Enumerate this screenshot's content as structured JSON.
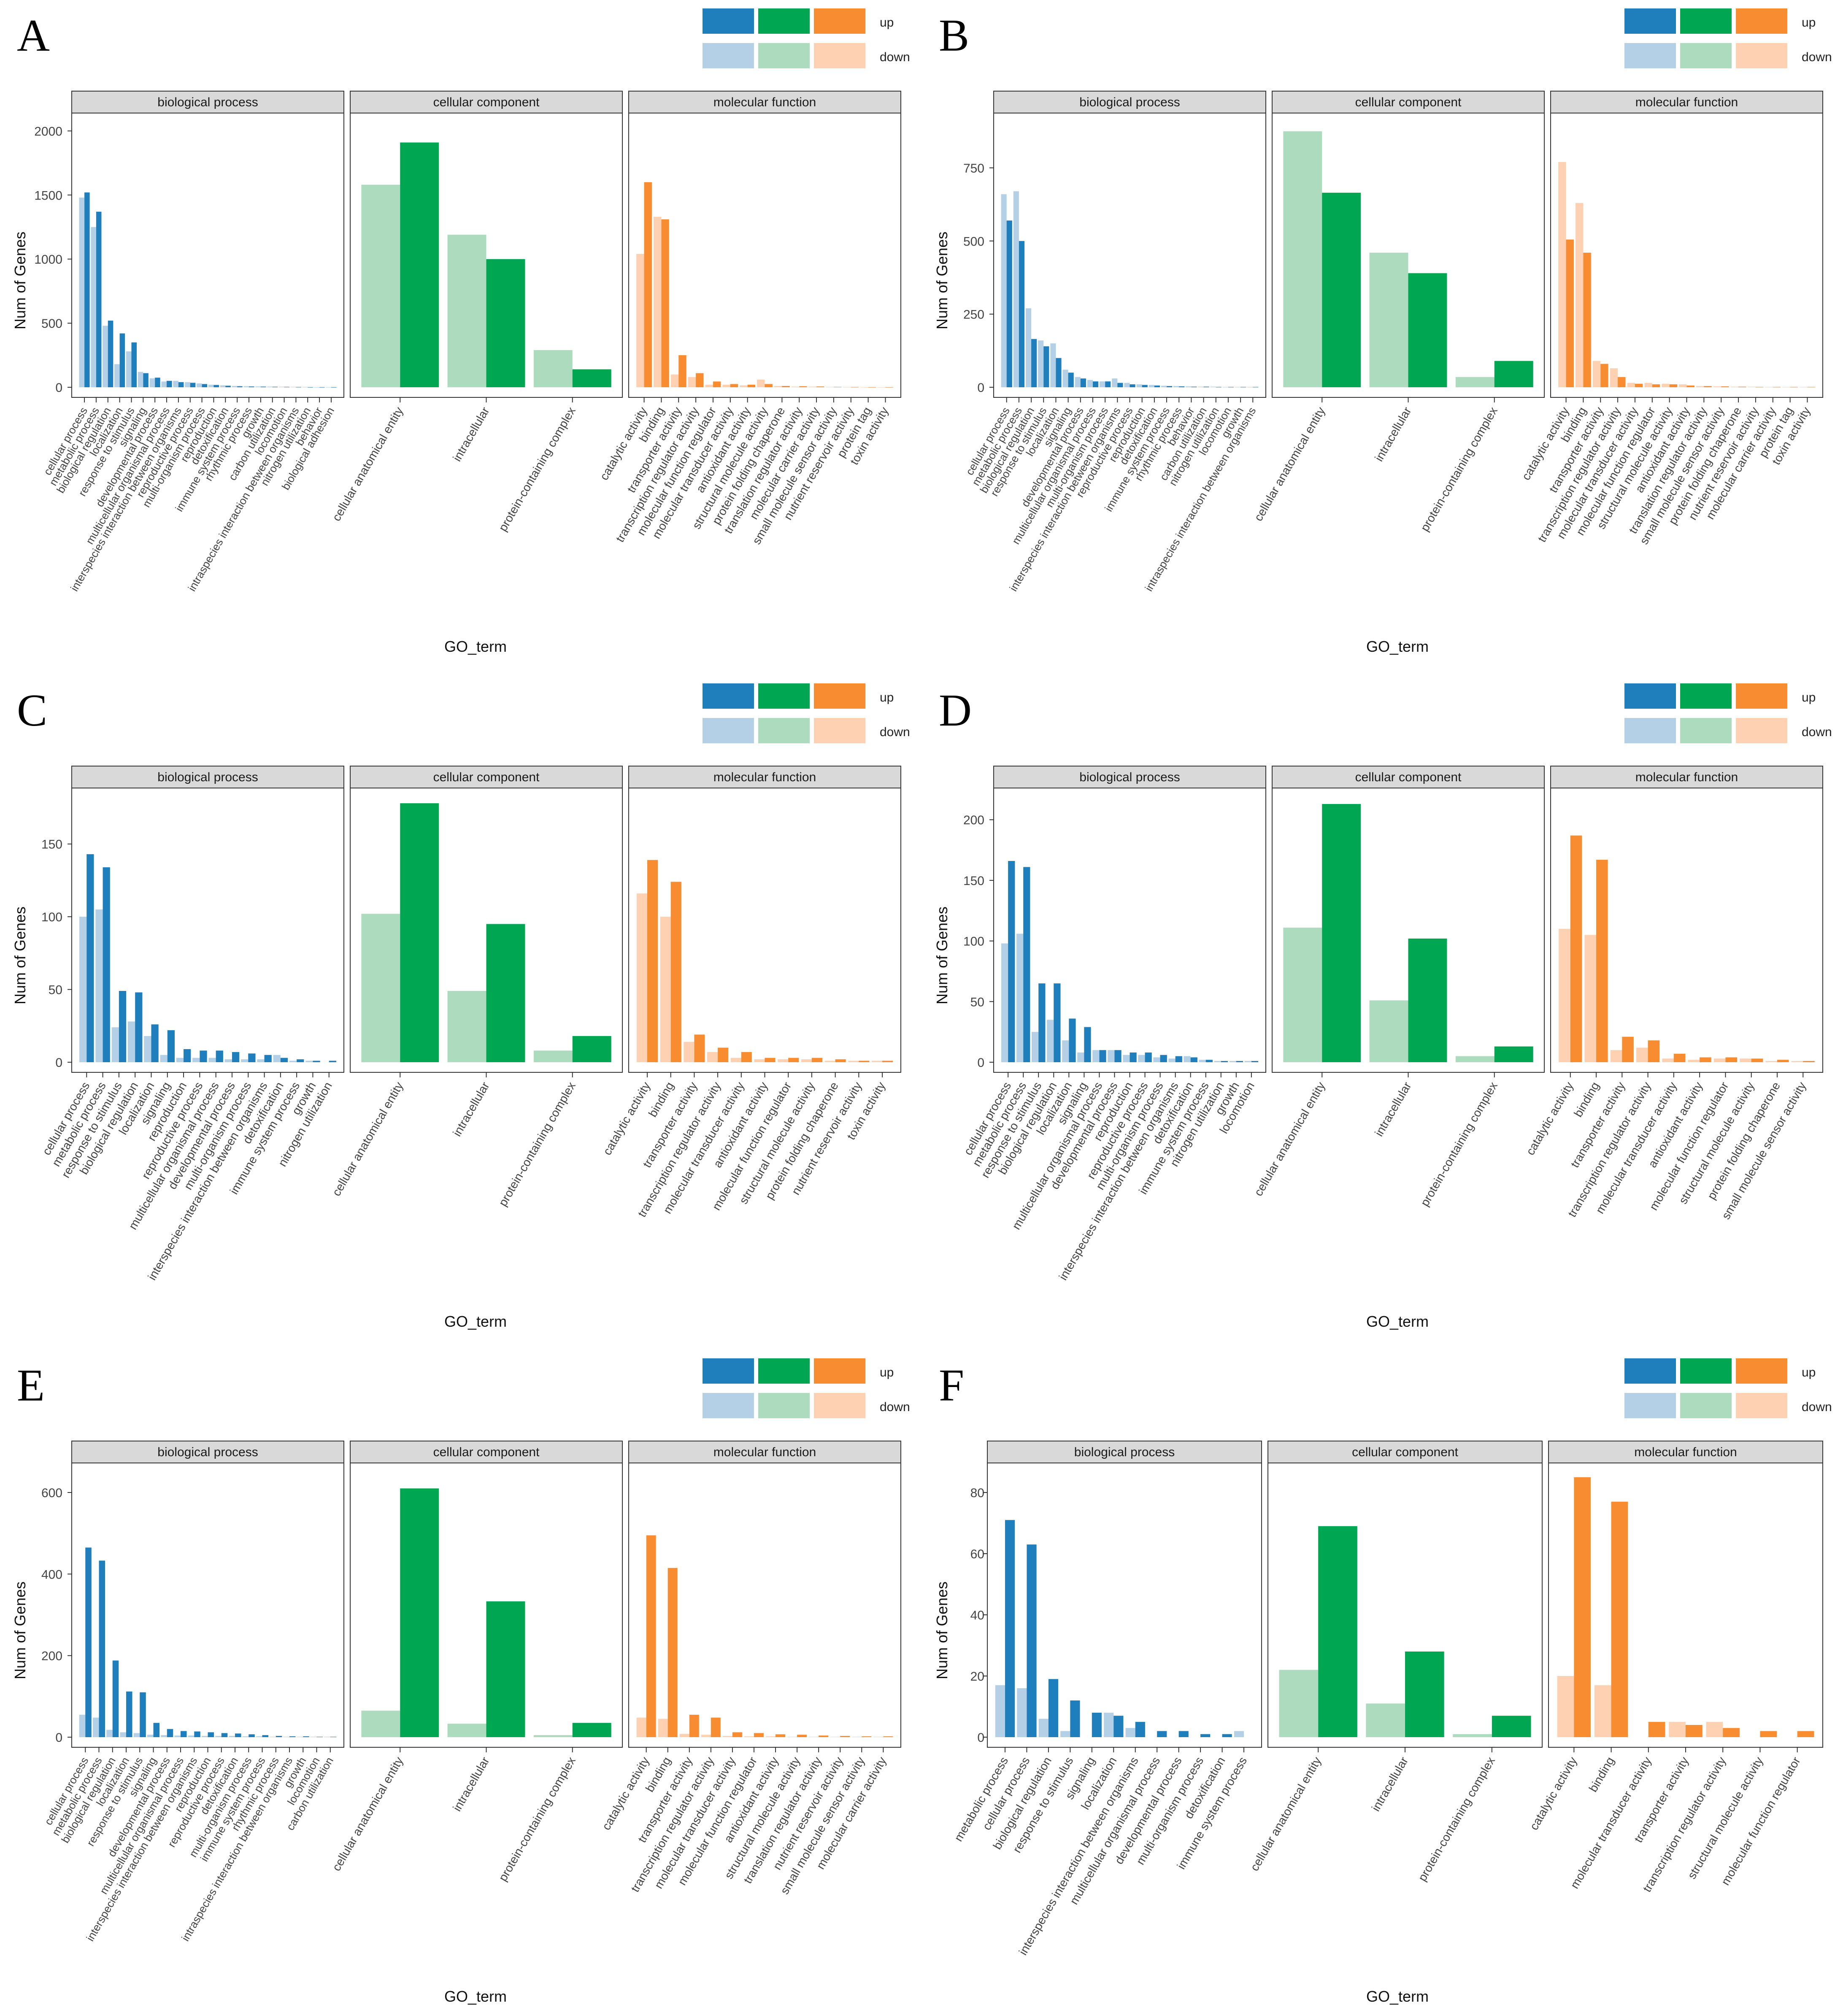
{
  "figure": {
    "x_axis_title": "GO_term",
    "y_axis_title": "Num of Genes",
    "facets": [
      "biological process",
      "cellular component",
      "molecular function"
    ],
    "legend": {
      "up_label": "up",
      "down_label": "down"
    },
    "colors": {
      "bp_up": "#1f7fbd",
      "bp_down": "#b3d0e6",
      "cc_up": "#00a652",
      "cc_down": "#acdcbd",
      "mf_up": "#f88c31",
      "mf_down": "#fdd1b1"
    }
  },
  "chart_data": [
    {
      "type": "bar",
      "panel": "A",
      "ylim": [
        0,
        2100
      ],
      "yticks": [
        0,
        500,
        1000,
        1500,
        2000
      ],
      "facets": [
        {
          "name": "biological process",
          "categories": [
            "cellular process",
            "metabolic process",
            "biological regulation",
            "localization",
            "response to stimulus",
            "signaling",
            "developmental process",
            "multicellular organismal process",
            "interspecies interaction between organisms",
            "reproductive process",
            "multi-organism process",
            "reproduction",
            "detoxification",
            "immune system process",
            "rhythmic process",
            "growth",
            "carbon utilization",
            "locomotion",
            "intraspecies interaction between organisms",
            "nitrogen utilization",
            "behavior",
            "biological adhesion"
          ],
          "down": [
            1480,
            1250,
            480,
            180,
            280,
            120,
            70,
            45,
            50,
            40,
            30,
            20,
            15,
            10,
            8,
            6,
            5,
            4,
            3,
            2,
            1,
            1
          ],
          "up": [
            1520,
            1370,
            520,
            420,
            350,
            110,
            75,
            50,
            40,
            35,
            25,
            18,
            12,
            8,
            6,
            5,
            4,
            3,
            2,
            1,
            1,
            1
          ]
        },
        {
          "name": "cellular component",
          "categories": [
            "cellular anatomical entity",
            "intracellular",
            "protein-containing complex"
          ],
          "down": [
            1580,
            1190,
            290
          ],
          "up": [
            1910,
            1000,
            140
          ]
        },
        {
          "name": "molecular function",
          "categories": [
            "catalytic activity",
            "binding",
            "transporter activity",
            "transcription regulator activity",
            "molecular function regulator",
            "molecular transducer activity",
            "antioxidant activity",
            "structural molecule activity",
            "protein folding chaperone",
            "translation regulator activity",
            "molecular carrier activity",
            "small molecule sensor activity",
            "nutrient reservoir activity",
            "protein tag",
            "toxin activity"
          ],
          "down": [
            1040,
            1330,
            100,
            80,
            20,
            20,
            15,
            60,
            10,
            5,
            5,
            3,
            2,
            1,
            1
          ],
          "up": [
            1600,
            1310,
            250,
            110,
            45,
            25,
            20,
            25,
            10,
            8,
            6,
            3,
            2,
            1,
            1
          ]
        }
      ]
    },
    {
      "type": "bar",
      "panel": "B",
      "ylim": [
        0,
        920
      ],
      "yticks": [
        0,
        250,
        500,
        750
      ],
      "facets": [
        {
          "name": "biological process",
          "categories": [
            "cellular process",
            "metabolic process",
            "biological regulation",
            "response to stimulus",
            "localization",
            "signaling",
            "developmental process",
            "multicellular organismal process",
            "multi-organism process",
            "interspecies interaction between organisms",
            "reproductive process",
            "reproduction",
            "detoxification",
            "immune system process",
            "rhythmic process",
            "behavior",
            "carbon utilization",
            "nitrogen utilization",
            "locomotion",
            "growth",
            "intraspecies interaction between organisms"
          ],
          "down": [
            660,
            670,
            270,
            160,
            150,
            60,
            35,
            25,
            20,
            30,
            15,
            10,
            8,
            5,
            4,
            3,
            2,
            2,
            1,
            1,
            1
          ],
          "up": [
            570,
            500,
            165,
            140,
            100,
            50,
            30,
            20,
            20,
            15,
            10,
            8,
            6,
            4,
            3,
            2,
            2,
            1,
            1,
            1,
            1
          ]
        },
        {
          "name": "cellular component",
          "categories": [
            "cellular anatomical entity",
            "intracellular",
            "protein-containing complex"
          ],
          "down": [
            875,
            460,
            35
          ],
          "up": [
            665,
            390,
            90
          ]
        },
        {
          "name": "molecular function",
          "categories": [
            "catalytic activity",
            "binding",
            "transporter activity",
            "transcription regulator activity",
            "molecular transducer activity",
            "molecular function regulator",
            "structural molecule activity",
            "antioxidant activity",
            "translation regulator activity",
            "small molecule sensor activity",
            "protein folding chaperone",
            "nutrient reservoir activity",
            "molecular carrier activity",
            "protein tag",
            "toxin activity"
          ],
          "down": [
            770,
            630,
            90,
            65,
            15,
            15,
            12,
            10,
            4,
            3,
            2,
            2,
            1,
            1,
            1
          ],
          "up": [
            505,
            460,
            80,
            35,
            12,
            10,
            10,
            6,
            4,
            3,
            2,
            1,
            1,
            1,
            1
          ]
        }
      ]
    },
    {
      "type": "bar",
      "panel": "C",
      "ylim": [
        0,
        185
      ],
      "yticks": [
        0,
        50,
        100,
        150
      ],
      "facets": [
        {
          "name": "biological process",
          "categories": [
            "cellular process",
            "metabolic process",
            "response to stimulus",
            "biological regulation",
            "localization",
            "signaling",
            "reproduction",
            "reproductive process",
            "multicellular organismal process",
            "developmental process",
            "multi-organism process",
            "interspecies interaction between organisms",
            "detoxification",
            "immune system process",
            "growth",
            "nitrogen utilization"
          ],
          "down": [
            100,
            105,
            24,
            28,
            18,
            5,
            3,
            3,
            3,
            2,
            2,
            2,
            5,
            1,
            1,
            0
          ],
          "up": [
            143,
            134,
            49,
            48,
            26,
            22,
            9,
            8,
            8,
            7,
            6,
            5,
            3,
            2,
            1,
            1
          ]
        },
        {
          "name": "cellular component",
          "categories": [
            "cellular anatomical entity",
            "intracellular",
            "protein-containing complex"
          ],
          "down": [
            102,
            49,
            8
          ],
          "up": [
            178,
            95,
            18
          ]
        },
        {
          "name": "molecular function",
          "categories": [
            "catalytic activity",
            "binding",
            "transporter activity",
            "transcription regulator activity",
            "molecular transducer activity",
            "antioxidant activity",
            "molecular function regulator",
            "structural molecule activity",
            "protein folding chaperone",
            "nutrient reservoir activity",
            "toxin activity"
          ],
          "down": [
            116,
            100,
            14,
            7,
            3,
            2,
            2,
            2,
            1,
            1,
            1
          ],
          "up": [
            139,
            124,
            19,
            10,
            7,
            3,
            3,
            3,
            2,
            1,
            1
          ]
        }
      ]
    },
    {
      "type": "bar",
      "panel": "D",
      "ylim": [
        0,
        222
      ],
      "yticks": [
        0,
        50,
        100,
        150,
        200
      ],
      "facets": [
        {
          "name": "biological process",
          "categories": [
            "cellular process",
            "metabolic process",
            "response to stimulus",
            "biological regulation",
            "localization",
            "signaling",
            "multicellular organismal process",
            "developmental process",
            "reproduction",
            "reproductive process",
            "multi-organism process",
            "interspecies interaction between organisms",
            "detoxification",
            "immune system process",
            "nitrogen utilization",
            "growth",
            "locomotion"
          ],
          "down": [
            98,
            106,
            25,
            35,
            18,
            8,
            10,
            10,
            6,
            6,
            4,
            3,
            5,
            2,
            1,
            1,
            1
          ],
          "up": [
            166,
            161,
            65,
            65,
            36,
            29,
            10,
            10,
            8,
            8,
            6,
            5,
            4,
            2,
            1,
            1,
            1
          ]
        },
        {
          "name": "cellular component",
          "categories": [
            "cellular anatomical entity",
            "intracellular",
            "protein-containing complex"
          ],
          "down": [
            111,
            51,
            5
          ],
          "up": [
            213,
            102,
            13
          ]
        },
        {
          "name": "molecular function",
          "categories": [
            "catalytic activity",
            "binding",
            "transporter activity",
            "transcription regulator activity",
            "molecular transducer activity",
            "antioxidant activity",
            "molecular function regulator",
            "structural molecule activity",
            "protein folding chaperone",
            "small molecule sensor activity"
          ],
          "down": [
            110,
            105,
            10,
            12,
            3,
            2,
            3,
            3,
            1,
            1
          ],
          "up": [
            187,
            167,
            21,
            18,
            7,
            4,
            4,
            3,
            2,
            1
          ]
        }
      ]
    },
    {
      "type": "bar",
      "panel": "E",
      "ylim": [
        0,
        660
      ],
      "yticks": [
        0,
        200,
        400,
        600
      ],
      "facets": [
        {
          "name": "biological process",
          "categories": [
            "cellular process",
            "metabolic process",
            "biological regulation",
            "localization",
            "response to stimulus",
            "signaling",
            "developmental process",
            "multicellular organismal process",
            "interspecies interaction between organisms",
            "reproduction",
            "reproductive process",
            "detoxification",
            "multi-organism process",
            "immune system process",
            "rhythmic process",
            "intraspecies interaction between organisms",
            "growth",
            "locomotion",
            "carbon utilization"
          ],
          "down": [
            55,
            48,
            18,
            12,
            10,
            6,
            5,
            4,
            4,
            3,
            3,
            3,
            2,
            2,
            1,
            1,
            1,
            1,
            1
          ],
          "up": [
            465,
            433,
            188,
            112,
            110,
            35,
            20,
            15,
            14,
            12,
            10,
            9,
            7,
            5,
            3,
            2,
            2,
            1,
            1
          ]
        },
        {
          "name": "cellular component",
          "categories": [
            "cellular anatomical entity",
            "intracellular",
            "protein-containing complex"
          ],
          "down": [
            65,
            33,
            5
          ],
          "up": [
            610,
            333,
            35
          ]
        },
        {
          "name": "molecular function",
          "categories": [
            "catalytic activity",
            "binding",
            "transporter activity",
            "transcription regulator activity",
            "molecular transducer activity",
            "molecular function regulator",
            "antioxidant activity",
            "structural molecule activity",
            "translation regulator activity",
            "nutrient reservoir activity",
            "small molecule sensor activity",
            "molecular carrier activity"
          ],
          "down": [
            48,
            45,
            8,
            6,
            3,
            2,
            2,
            1,
            1,
            1,
            1,
            1
          ],
          "up": [
            495,
            415,
            55,
            48,
            12,
            10,
            7,
            6,
            4,
            3,
            2,
            2
          ]
        }
      ]
    },
    {
      "type": "bar",
      "panel": "F",
      "ylim": [
        0,
        88
      ],
      "yticks": [
        0,
        20,
        40,
        60,
        80
      ],
      "facets": [
        {
          "name": "biological process",
          "categories": [
            "metabolic process",
            "cellular process",
            "biological regulation",
            "response to stimulus",
            "signaling",
            "localization",
            "interspecies interaction between organisms",
            "multicellular organismal process",
            "developmental process",
            "multi-organism process",
            "detoxification",
            "immune system process"
          ],
          "down": [
            17,
            16,
            6,
            2,
            0,
            8,
            3,
            0,
            0,
            0,
            0,
            2
          ],
          "up": [
            71,
            63,
            19,
            12,
            8,
            7,
            5,
            2,
            2,
            1,
            1,
            0
          ]
        },
        {
          "name": "cellular component",
          "categories": [
            "cellular anatomical entity",
            "intracellular",
            "protein-containing complex"
          ],
          "down": [
            22,
            11,
            1
          ],
          "up": [
            69,
            28,
            7
          ]
        },
        {
          "name": "molecular function",
          "categories": [
            "catalytic activity",
            "binding",
            "molecular transducer activity",
            "transporter activity",
            "transcription regulator activity",
            "structural molecule activity",
            "molecular function regulator"
          ],
          "down": [
            20,
            17,
            0,
            5,
            5,
            0,
            0
          ],
          "up": [
            85,
            77,
            5,
            4,
            3,
            2,
            2
          ]
        }
      ]
    }
  ]
}
